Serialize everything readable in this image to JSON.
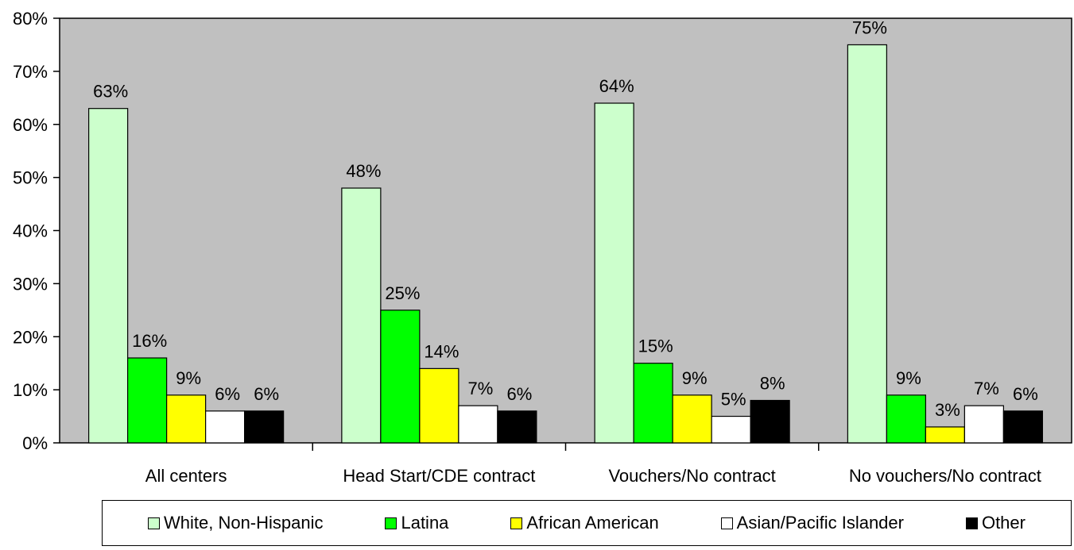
{
  "chart_data": {
    "type": "bar",
    "categories": [
      "All centers",
      "Head Start/CDE contract",
      "Vouchers/No contract",
      "No vouchers/No contract"
    ],
    "series": [
      {
        "name": "White, Non-Hispanic",
        "color": "#ccffcc",
        "values": [
          63,
          48,
          64,
          75
        ],
        "labels": [
          "63%",
          "48%",
          "64%",
          "75%"
        ]
      },
      {
        "name": "Latina",
        "color": "#00ff00",
        "values": [
          16,
          25,
          15,
          9
        ],
        "labels": [
          "16%",
          "25%",
          "15%",
          "9%"
        ]
      },
      {
        "name": "African American",
        "color": "#ffff00",
        "values": [
          9,
          14,
          9,
          3
        ],
        "labels": [
          "9%",
          "14%",
          "9%",
          "3%"
        ]
      },
      {
        "name": "Asian/Pacific Islander",
        "color": "#ffffff",
        "values": [
          6,
          7,
          5,
          7
        ],
        "labels": [
          "6%",
          "7%",
          "5%",
          "7%"
        ]
      },
      {
        "name": "Other",
        "color": "#000000",
        "values": [
          6,
          6,
          8,
          6
        ],
        "labels": [
          "6%",
          "6%",
          "8%",
          "6%"
        ]
      }
    ],
    "yticks": [
      "0%",
      "10%",
      "20%",
      "30%",
      "40%",
      "50%",
      "60%",
      "70%",
      "80%"
    ],
    "ylim": [
      0,
      80
    ],
    "grid": false,
    "plot_background": "#c0c0c0",
    "legend_position": "bottom"
  }
}
